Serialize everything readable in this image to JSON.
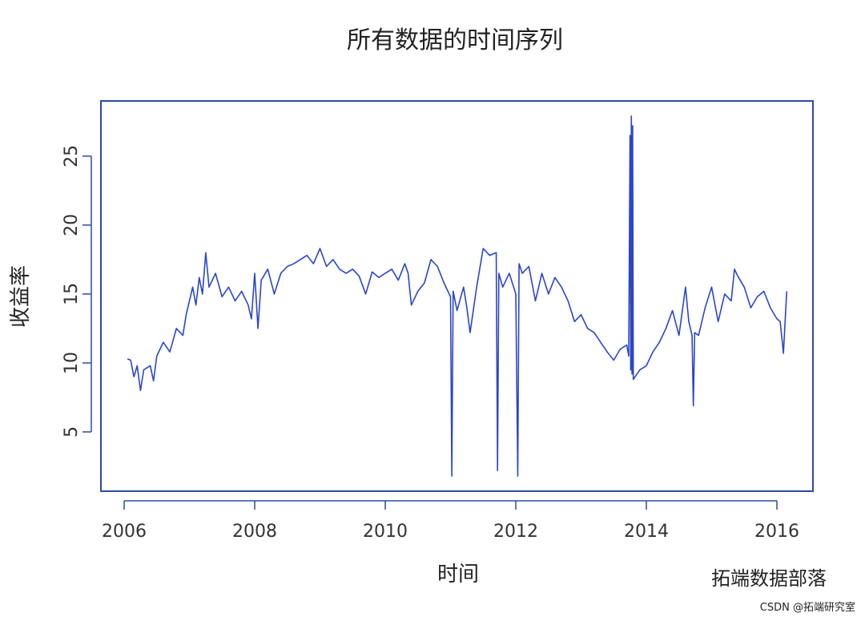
{
  "chart_data": {
    "type": "line",
    "title": "所有数据的时间序列",
    "xlabel": "时间",
    "ylabel": "收益率",
    "x": [
      2006.05,
      2006.1,
      2006.15,
      2006.2,
      2006.25,
      2006.3,
      2006.4,
      2006.45,
      2006.5,
      2006.6,
      2006.7,
      2006.8,
      2006.9,
      2006.95,
      2007.0,
      2007.05,
      2007.1,
      2007.15,
      2007.2,
      2007.25,
      2007.3,
      2007.4,
      2007.5,
      2007.6,
      2007.7,
      2007.8,
      2007.9,
      2007.95,
      2008.0,
      2008.05,
      2008.1,
      2008.2,
      2008.3,
      2008.4,
      2008.5,
      2008.6,
      2008.7,
      2008.8,
      2008.9,
      2009.0,
      2009.1,
      2009.2,
      2009.3,
      2009.4,
      2009.5,
      2009.6,
      2009.7,
      2009.8,
      2009.9,
      2010.0,
      2010.1,
      2010.2,
      2010.3,
      2010.35,
      2010.4,
      2010.5,
      2010.6,
      2010.7,
      2010.8,
      2010.9,
      2011.0,
      2011.02,
      2011.04,
      2011.1,
      2011.2,
      2011.25,
      2011.3,
      2011.4,
      2011.5,
      2011.6,
      2011.7,
      2011.72,
      2011.74,
      2011.8,
      2011.9,
      2012.0,
      2012.03,
      2012.05,
      2012.1,
      2012.2,
      2012.3,
      2012.4,
      2012.5,
      2012.6,
      2012.7,
      2012.8,
      2012.9,
      2013.0,
      2013.1,
      2013.2,
      2013.3,
      2013.4,
      2013.5,
      2013.6,
      2013.7,
      2013.73,
      2013.75,
      2013.76,
      2013.77,
      2013.78,
      2013.79,
      2013.8,
      2013.9,
      2014.0,
      2014.1,
      2014.2,
      2014.3,
      2014.4,
      2014.5,
      2014.6,
      2014.65,
      2014.7,
      2014.72,
      2014.74,
      2014.8,
      2014.9,
      2015.0,
      2015.1,
      2015.2,
      2015.3,
      2015.35,
      2015.4,
      2015.5,
      2015.6,
      2015.7,
      2015.8,
      2015.9,
      2016.0,
      2016.05,
      2016.1,
      2016.12,
      2016.15
    ],
    "series": [
      {
        "name": "收益率",
        "color": "#2b46c9",
        "values": [
          10.3,
          10.2,
          9.0,
          9.8,
          8.0,
          9.5,
          9.8,
          8.7,
          10.5,
          11.5,
          10.8,
          12.5,
          12.0,
          13.5,
          14.5,
          15.5,
          14.2,
          16.2,
          15.0,
          18.0,
          15.5,
          16.5,
          14.8,
          15.5,
          14.5,
          15.2,
          14.2,
          13.2,
          16.5,
          12.5,
          16.0,
          16.8,
          15.0,
          16.5,
          17.0,
          17.2,
          17.5,
          17.8,
          17.2,
          18.3,
          17.0,
          17.5,
          16.8,
          16.5,
          16.8,
          16.3,
          15.0,
          16.6,
          16.2,
          16.5,
          16.8,
          16.0,
          17.2,
          16.5,
          14.2,
          15.2,
          15.8,
          17.5,
          17.0,
          15.8,
          14.8,
          1.8,
          15.2,
          13.8,
          15.5,
          14.0,
          12.2,
          15.5,
          18.3,
          17.8,
          18.0,
          2.2,
          16.5,
          15.5,
          16.5,
          15.0,
          1.8,
          17.2,
          16.5,
          17.0,
          14.5,
          16.5,
          15.0,
          16.2,
          15.5,
          14.5,
          13.0,
          13.5,
          12.5,
          12.2,
          11.5,
          10.8,
          10.2,
          11.0,
          11.3,
          10.5,
          26.5,
          9.5,
          27.9,
          9.2,
          27.2,
          8.8,
          9.5,
          9.8,
          10.8,
          11.5,
          12.5,
          13.8,
          12.0,
          15.5,
          13.0,
          12.0,
          6.9,
          12.2,
          12.0,
          14.0,
          15.5,
          13.0,
          15.0,
          14.5,
          16.8,
          16.3,
          15.5,
          14.0,
          14.8,
          15.2,
          14.0,
          13.2,
          13.0,
          10.7,
          12.5,
          15.2
        ]
      }
    ],
    "xlim": [
      2005.644,
      2016.552
    ],
    "ylim": [
      0.7,
      29.0
    ],
    "xticks": [
      2006,
      2008,
      2010,
      2012,
      2014,
      2016
    ],
    "yticks": [
      5,
      10,
      15,
      20,
      25
    ]
  },
  "watermark": {
    "brand": "拓端数据部落",
    "credit": "CSDN @拓端研究室"
  }
}
